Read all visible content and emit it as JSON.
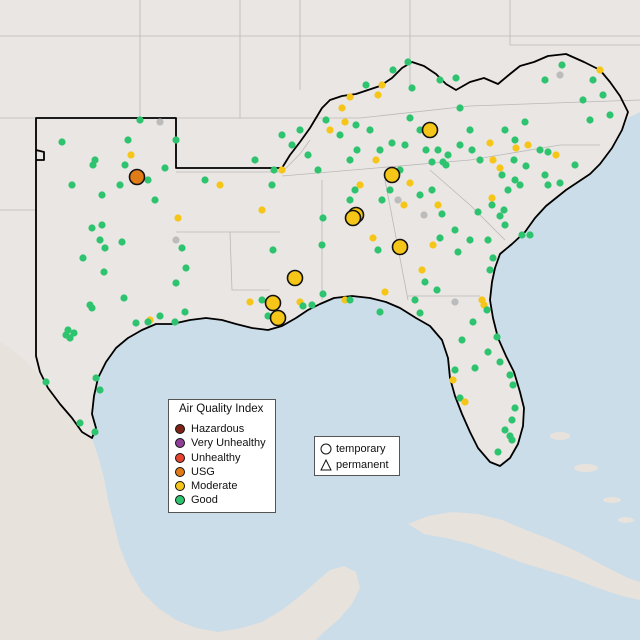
{
  "colors": {
    "ocean": "#cbdde9",
    "land": "#eae6e3",
    "border": "#b9b9b9",
    "region_outline": "#000000"
  },
  "legend": {
    "title": "Air Quality Index",
    "items": [
      {
        "label": "Hazardous",
        "color": "#7e2316"
      },
      {
        "label": "Very Unhealthy",
        "color": "#8f3f97"
      },
      {
        "label": "Unhealthy",
        "color": "#e8432c"
      },
      {
        "label": "USG",
        "color": "#e07b17"
      },
      {
        "label": "Moderate",
        "color": "#f5c518"
      },
      {
        "label": "Good",
        "color": "#2ec36f"
      }
    ]
  },
  "monitor_types": {
    "items": [
      {
        "label": "temporary",
        "shape": "circle-icon"
      },
      {
        "label": "permanent",
        "shape": "triangle-icon"
      }
    ]
  }
}
